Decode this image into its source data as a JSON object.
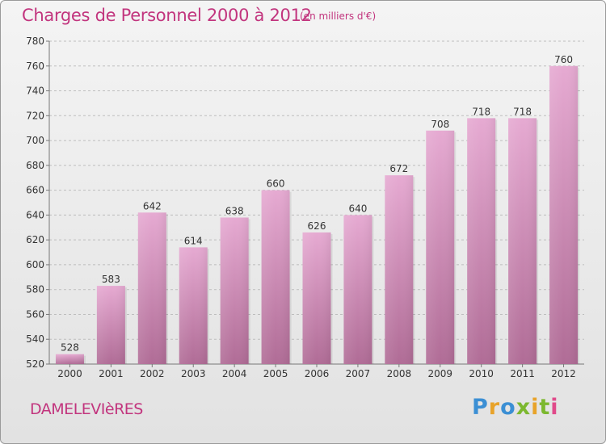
{
  "header": {
    "title": "Charges de Personnel 2000 à 2012",
    "subtitle": "(en milliers d'€)"
  },
  "footer": {
    "commune": "DAMELEVIèRES",
    "logo_text": "Proxiti",
    "logo_colors": [
      "#3b8fd4",
      "#e8a32a",
      "#3b8fd4",
      "#7cb82f",
      "#e8a32a",
      "#7cb82f",
      "#e04a8a"
    ]
  },
  "colors": {
    "title": "#c2357e",
    "bar_top": "#e6aad2",
    "bar_bottom": "#b06c96",
    "grid": "#bdbdbd",
    "axis_text": "#333333"
  },
  "chart_data": {
    "type": "bar",
    "title": "Charges de Personnel 2000 à 2012",
    "subtitle": "(en milliers d'€)",
    "categories": [
      "2000",
      "2001",
      "2002",
      "2003",
      "2004",
      "2005",
      "2006",
      "2007",
      "2008",
      "2009",
      "2010",
      "2011",
      "2012"
    ],
    "values": [
      528,
      583,
      642,
      614,
      638,
      660,
      626,
      640,
      672,
      708,
      718,
      718,
      760
    ],
    "ylim": [
      520,
      780
    ],
    "yticks": [
      520,
      540,
      560,
      580,
      600,
      620,
      640,
      660,
      680,
      700,
      720,
      740,
      760,
      780
    ],
    "grid": "horizontal-dashed",
    "data_labels": true
  }
}
